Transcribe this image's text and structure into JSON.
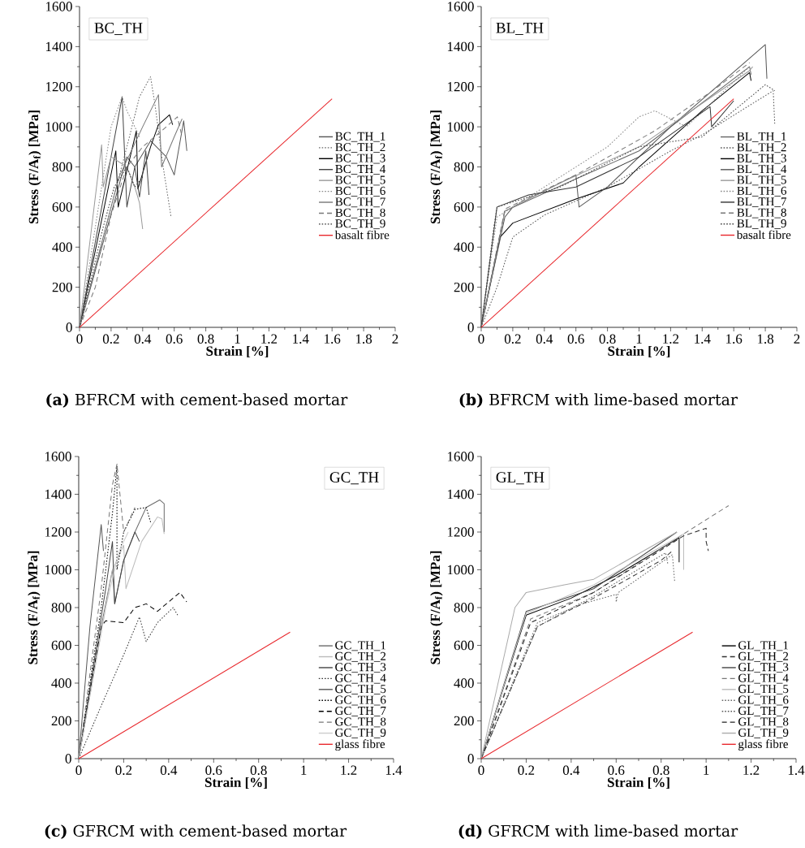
{
  "chart_data": [
    {
      "type": "line",
      "title": "BC_TH",
      "xlabel": "Strain [%]",
      "ylabel": "Stress (F/A$_{f}$) [MPa]",
      "annotations": [
        "**(a)** BFRCM with cement-based mortar"
      ],
      "xlim": [
        0,
        2
      ],
      "ylim": [
        0,
        1600
      ],
      "xticks": [
        0,
        0.2,
        0.4,
        0.6,
        0.8,
        1,
        1.2,
        1.4,
        1.6,
        1.8,
        2
      ],
      "yticks": [
        0,
        200,
        400,
        600,
        800,
        1000,
        1200,
        1400,
        1600
      ],
      "legend": "right",
      "series": [
        {
          "name": "BC_TH_1",
          "color": "#555555",
          "line_style": "solid",
          "x": [
            0,
            0.3,
            0.35,
            0.45,
            0.55,
            0.6,
            0.66,
            0.68
          ],
          "values": [
            0,
            850,
            800,
            930,
            850,
            760,
            1030,
            880
          ]
        },
        {
          "name": "BC_TH_2",
          "color": "#666666",
          "line_style": "dotted",
          "x": [
            0,
            0.3,
            0.38,
            0.45,
            0.48,
            0.53,
            0.58
          ],
          "values": [
            0,
            900,
            1150,
            1250,
            1100,
            800,
            550
          ]
        },
        {
          "name": "BC_TH_3",
          "color": "#000000",
          "line_style": "solid",
          "x": [
            0,
            0.23,
            0.245,
            0.36,
            0.37,
            0.45,
            0.5,
            0.57,
            0.59
          ],
          "values": [
            0,
            880,
            600,
            980,
            690,
            900,
            1010,
            1060,
            1010
          ]
        },
        {
          "name": "BC_TH_4",
          "color": "#444444",
          "line_style": "solid",
          "x": [
            0,
            0.27,
            0.3,
            0.35,
            0.38,
            0.42,
            0.44
          ],
          "values": [
            0,
            1150,
            600,
            800,
            650,
            880,
            660
          ]
        },
        {
          "name": "BC_TH_5",
          "color": "#999999",
          "line_style": "solid",
          "x": [
            0,
            0.1,
            0.14,
            0.15,
            0.2,
            0.3,
            0.35,
            0.38,
            0.4
          ],
          "values": [
            0,
            650,
            910,
            700,
            850,
            800,
            700,
            620,
            490
          ]
        },
        {
          "name": "BC_TH_6",
          "color": "#888888",
          "line_style": "dotted",
          "x": [
            0,
            0.2,
            0.27,
            0.3,
            0.35,
            0.38
          ],
          "values": [
            0,
            1000,
            1150,
            1080,
            1000,
            950
          ]
        },
        {
          "name": "BC_TH_7",
          "color": "#777777",
          "line_style": "solid",
          "x": [
            0,
            0.25,
            0.4,
            0.5,
            0.52,
            0.6,
            0.65
          ],
          "values": [
            0,
            750,
            1000,
            1160,
            800,
            950,
            1040
          ]
        },
        {
          "name": "BC_TH_8",
          "color": "#777777",
          "line_style": "dashed",
          "x": [
            0,
            0.1,
            0.2,
            0.3,
            0.4,
            0.55,
            0.62,
            0.65
          ],
          "values": [
            0,
            200,
            560,
            800,
            900,
            1000,
            1050,
            950
          ]
        },
        {
          "name": "BC_TH_9",
          "color": "#333333",
          "line_style": "dotted",
          "x": [
            0,
            0.15,
            0.22,
            0.3,
            0.35,
            0.4
          ],
          "values": [
            0,
            500,
            700,
            800,
            700,
            750
          ]
        },
        {
          "name": "basalt fibre",
          "color": "#e8262b",
          "line_style": "solid",
          "x": [
            0,
            1.6
          ],
          "values": [
            0,
            1140
          ]
        }
      ]
    },
    {
      "type": "line",
      "title": "BL_TH",
      "xlabel": "Strain [%]",
      "ylabel": "Stress (F/A$_{f}$) [MPa]",
      "annotations": [
        "**(b)** BFRCM with lime-based mortar"
      ],
      "xlim": [
        0,
        2
      ],
      "ylim": [
        0,
        1600
      ],
      "xticks": [
        0,
        0.2,
        0.4,
        0.6,
        0.8,
        1,
        1.2,
        1.4,
        1.6,
        1.8,
        2
      ],
      "yticks": [
        0,
        200,
        400,
        600,
        800,
        1000,
        1200,
        1400,
        1600
      ],
      "legend": "right",
      "series": [
        {
          "name": "BL_TH_1",
          "color": "#666666",
          "line_style": "solid",
          "x": [
            0,
            0.15,
            0.6,
            1,
            1.7,
            1.71
          ],
          "values": [
            0,
            580,
            740,
            880,
            1300,
            1260
          ]
        },
        {
          "name": "BL_TH_2",
          "color": "#555555",
          "line_style": "dotted",
          "x": [
            0,
            0.1,
            0.2,
            0.4,
            0.8,
            1.2,
            1.4,
            1.85,
            1.86
          ],
          "values": [
            0,
            200,
            450,
            560,
            700,
            880,
            960,
            1180,
            1010
          ]
        },
        {
          "name": "BL_TH_3",
          "color": "#000000",
          "line_style": "solid",
          "x": [
            0,
            0.12,
            0.2,
            0.6,
            0.9,
            1,
            1.4,
            1.7,
            1.71
          ],
          "values": [
            0,
            450,
            520,
            640,
            720,
            800,
            1080,
            1270,
            1230
          ]
        },
        {
          "name": "BL_TH_4",
          "color": "#555555",
          "line_style": "solid",
          "x": [
            0,
            0.15,
            0.2,
            0.6,
            0.62,
            0.8,
            1.2,
            1.8,
            1.81
          ],
          "values": [
            0,
            550,
            600,
            760,
            600,
            700,
            1000,
            1410,
            1240
          ]
        },
        {
          "name": "BL_TH_5",
          "color": "#999999",
          "line_style": "solid",
          "x": [
            0,
            0.15,
            0.5,
            1,
            1.7,
            1.72
          ],
          "values": [
            0,
            580,
            720,
            900,
            1280,
            1300
          ]
        },
        {
          "name": "BL_TH_6",
          "color": "#888888",
          "line_style": "dotted",
          "x": [
            0,
            0.1,
            0.4,
            0.8,
            1,
            1.1,
            1.3,
            1.7
          ],
          "values": [
            0,
            550,
            700,
            900,
            1050,
            1080,
            1000,
            1300
          ]
        },
        {
          "name": "BL_TH_7",
          "color": "#333333",
          "line_style": "solid",
          "x": [
            0,
            0.1,
            0.3,
            0.6,
            1,
            1.45,
            1.46,
            1.6
          ],
          "values": [
            0,
            600,
            660,
            700,
            850,
            1100,
            1000,
            1130
          ]
        },
        {
          "name": "BL_TH_8",
          "color": "#777777",
          "line_style": "dashed",
          "x": [
            0,
            0.15,
            0.6,
            1.1,
            1.5,
            1.7
          ],
          "values": [
            0,
            590,
            760,
            980,
            1200,
            1320
          ]
        },
        {
          "name": "BL_TH_9",
          "color": "#444444",
          "line_style": "dotted",
          "x": [
            0,
            0.08,
            0.1,
            0.5,
            1,
            1.4,
            1.8,
            1.86
          ],
          "values": [
            0,
            500,
            600,
            700,
            900,
            950,
            1210,
            1180
          ]
        },
        {
          "name": "basalt fibre",
          "color": "#e8262b",
          "line_style": "solid",
          "x": [
            0,
            1.6
          ],
          "values": [
            0,
            1140
          ]
        }
      ]
    },
    {
      "type": "line",
      "title": "GC_TH",
      "xlabel": "Strain [%]",
      "ylabel": "Stress (F/A$_{f}$) [MPa]",
      "annotations": [
        "**(c)** GFRCM with cement-based mortar"
      ],
      "xlim": [
        0,
        1.4
      ],
      "ylim": [
        0,
        1600
      ],
      "xticks": [
        0,
        0.2,
        0.4,
        0.6,
        0.8,
        1,
        1.2,
        1.4
      ],
      "yticks": [
        0,
        200,
        400,
        600,
        800,
        1000,
        1200,
        1400,
        1600
      ],
      "legend": "bottom right",
      "series": [
        {
          "name": "GC_TH_1",
          "color": "#6b6b6b",
          "line_style": "solid",
          "x": [
            0,
            0.1,
            0.15,
            0.16,
            0.2,
            0.25,
            0.3,
            0.36,
            0.38,
            0.38
          ],
          "values": [
            0,
            700,
            1000,
            820,
            1050,
            1200,
            1330,
            1370,
            1350,
            1200
          ]
        },
        {
          "name": "GC_TH_2",
          "color": "#bbbbbb",
          "line_style": "solid",
          "x": [
            0,
            0.15,
            0.2,
            0.21,
            0.28,
            0.35,
            0.37,
            0.38
          ],
          "values": [
            0,
            1000,
            1130,
            900,
            1150,
            1280,
            1270,
            1190
          ]
        },
        {
          "name": "GC_TH_3",
          "color": "#444444",
          "line_style": "solid",
          "x": [
            0,
            0.12,
            0.15,
            0.16,
            0.2,
            0.25,
            0.27
          ],
          "values": [
            0,
            900,
            1150,
            820,
            1050,
            1200,
            1150
          ]
        },
        {
          "name": "GC_TH_4",
          "color": "#333333",
          "line_style": "dotted",
          "x": [
            0,
            0.1,
            0.2,
            0.27,
            0.3,
            0.35,
            0.42,
            0.44
          ],
          "values": [
            0,
            280,
            550,
            750,
            620,
            720,
            800,
            760
          ]
        },
        {
          "name": "GC_TH_5",
          "color": "#555555",
          "line_style": "solid",
          "x": [
            0,
            0.05,
            0.1,
            0.11
          ],
          "values": [
            0,
            700,
            1240,
            1100
          ]
        },
        {
          "name": "GC_TH_6",
          "color": "#000000",
          "line_style": "dotted",
          "x": [
            0,
            0.1,
            0.15,
            0.17,
            0.17,
            0.2,
            0.25,
            0.3,
            0.32
          ],
          "values": [
            0,
            800,
            1300,
            1550,
            1000,
            1200,
            1320,
            1330,
            1250
          ]
        },
        {
          "name": "GC_TH_7",
          "color": "#000000",
          "line_style": "dashed",
          "x": [
            0,
            0.1,
            0.12,
            0.2,
            0.25,
            0.3,
            0.35,
            0.45,
            0.48
          ],
          "values": [
            0,
            700,
            730,
            720,
            800,
            820,
            780,
            880,
            830
          ]
        },
        {
          "name": "GC_TH_8",
          "color": "#777777",
          "line_style": "dashed",
          "x": [
            0,
            0.1,
            0.15,
            0.17,
            0.2,
            0.25
          ],
          "values": [
            0,
            900,
            1450,
            1560,
            1200,
            1330
          ]
        },
        {
          "name": "GC_TH_9",
          "color": "#cccccc",
          "line_style": "solid",
          "x": [
            0,
            0.12,
            0.18,
            0.22
          ],
          "values": [
            0,
            800,
            1100,
            1200
          ]
        },
        {
          "name": "glass fibre",
          "color": "#e8262b",
          "line_style": "solid",
          "x": [
            0,
            0.94
          ],
          "values": [
            0,
            670
          ]
        }
      ]
    },
    {
      "type": "line",
      "title": "GL_TH",
      "xlabel": "Strain [%]",
      "ylabel": "Stress (F/A$_{f}$) [MPa]",
      "annotations": [
        "**(d)** GFRCM with lime-based mortar"
      ],
      "xlim": [
        0,
        1.4
      ],
      "ylim": [
        0,
        1600
      ],
      "xticks": [
        0,
        0.2,
        0.4,
        0.6,
        0.8,
        1,
        1.2,
        1.4
      ],
      "yticks": [
        0,
        200,
        400,
        600,
        800,
        1000,
        1200,
        1400,
        1600
      ],
      "legend": "bottom right",
      "series": [
        {
          "name": "GL_TH_1",
          "color": "#000000",
          "line_style": "solid",
          "x": [
            0,
            0.2,
            0.4,
            0.6,
            0.88,
            0.88
          ],
          "values": [
            0,
            760,
            850,
            970,
            1170,
            1040
          ]
        },
        {
          "name": "GL_TH_2",
          "color": "#333333",
          "line_style": "dashed",
          "x": [
            0,
            0.25,
            0.5,
            0.8,
            0.85
          ],
          "values": [
            0,
            700,
            850,
            1050,
            1100
          ]
        },
        {
          "name": "GL_TH_3",
          "color": "#444444",
          "line_style": "solid",
          "x": [
            0,
            0.2,
            0.5,
            0.87
          ],
          "values": [
            0,
            780,
            900,
            1200
          ]
        },
        {
          "name": "GL_TH_4",
          "color": "#777777",
          "line_style": "dashed",
          "x": [
            0,
            0.22,
            0.5,
            0.9,
            1.1
          ],
          "values": [
            0,
            740,
            880,
            1190,
            1340
          ]
        },
        {
          "name": "GL_TH_5",
          "color": "#bbbbbb",
          "line_style": "solid",
          "x": [
            0,
            0.2,
            0.5,
            0.9,
            0.9
          ],
          "values": [
            0,
            770,
            920,
            1190,
            1000
          ]
        },
        {
          "name": "GL_TH_6",
          "color": "#666666",
          "line_style": "dotted",
          "x": [
            0,
            0.25,
            0.45,
            0.6,
            0.6,
            0.61,
            0.85,
            0.86
          ],
          "values": [
            0,
            720,
            820,
            870,
            830,
            880,
            1080,
            940
          ]
        },
        {
          "name": "GL_TH_7",
          "color": "#555555",
          "line_style": "dotted",
          "x": [
            0,
            0.25,
            0.5,
            0.82,
            0.83
          ],
          "values": [
            0,
            700,
            860,
            1090,
            1030
          ]
        },
        {
          "name": "GL_TH_8",
          "color": "#222222",
          "line_style": "dashed",
          "x": [
            0,
            0.22,
            0.5,
            0.9,
            1,
            1,
            1.01
          ],
          "values": [
            0,
            720,
            880,
            1180,
            1220,
            1150,
            1100
          ]
        },
        {
          "name": "GL_TH_9",
          "color": "#aaaaaa",
          "line_style": "solid",
          "x": [
            0,
            0.15,
            0.2,
            0.37,
            0.5,
            0.87
          ],
          "values": [
            0,
            800,
            880,
            920,
            950,
            1200
          ]
        },
        {
          "name": "glass fibre",
          "color": "#e8262b",
          "line_style": "solid",
          "x": [
            0,
            0.94
          ],
          "values": [
            0,
            670
          ]
        }
      ]
    }
  ]
}
